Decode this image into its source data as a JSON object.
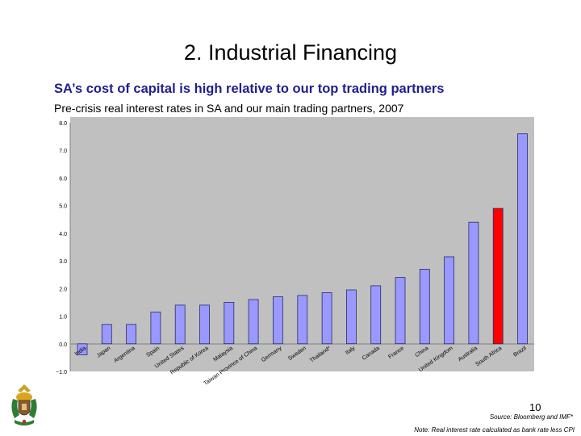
{
  "slide": {
    "title": "2. Industrial Financing",
    "subtitle": "SA’s cost of capital is high relative to our top trading partners",
    "chart_caption": "Pre-crisis real interest rates in SA and our main trading partners, 2007",
    "page_number": "10",
    "source": "Source: Bloomberg and IMF*",
    "note": "Note: Real interest rate calculated as bank rate less CPI"
  },
  "colors": {
    "bar": "#9999ff",
    "highlight": "#ff0000",
    "plot_background": "#c0c0c0",
    "title_blue": "#1f1f8f"
  },
  "chart_data": {
    "type": "bar",
    "categories": [
      "India",
      "Japan",
      "Argentina",
      "Spain",
      "United States",
      "Republic of Korea",
      "Malaysia",
      "Taiwan Province of China",
      "Germany",
      "Sweden",
      "Thailand*",
      "Italy",
      "Canada",
      "France",
      "China",
      "United Kingdom",
      "Australia",
      "South Africa",
      "Brazil"
    ],
    "values": [
      -0.4,
      0.7,
      0.7,
      1.15,
      1.4,
      1.4,
      1.5,
      1.6,
      1.7,
      1.75,
      1.85,
      1.95,
      2.1,
      2.4,
      2.7,
      3.15,
      4.4,
      4.9,
      7.6
    ],
    "highlight_category": "South Africa",
    "ylim": [
      -1.0,
      8.0
    ],
    "yticks": [
      "−1.0",
      "0.0",
      "1.0",
      "2.0",
      "3.0",
      "4.0",
      "5.0",
      "6.0",
      "7.0",
      "8.0"
    ],
    "grid": false,
    "legend": "none"
  }
}
